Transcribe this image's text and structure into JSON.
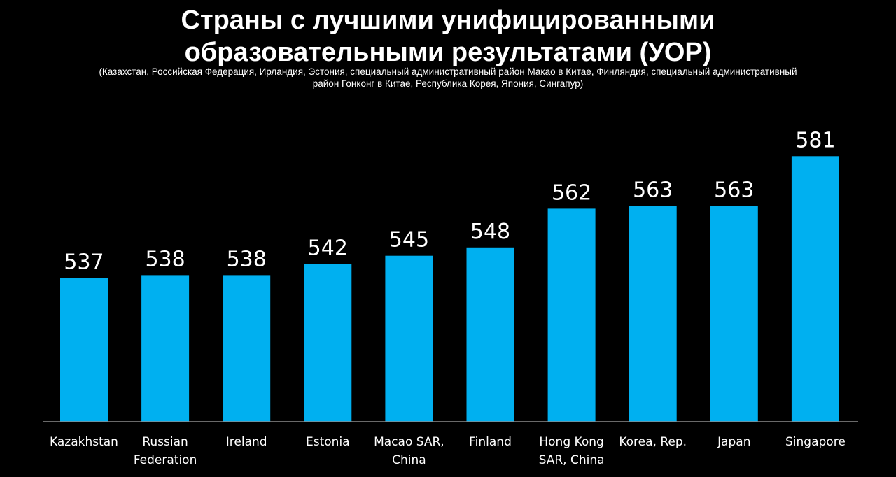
{
  "header": {
    "title_line1": "Страны с лучшими унифицированными",
    "title_line2": "образовательными результатами (УОР)",
    "subtitle_line1": "(Казахстан, Российская Федерация, Ирландия, Эстония, специальный административный район Макао в Китае, Финляндия, специальный административный",
    "subtitle_line2": "район Гонконг в Китае,  Республика Корея, Япония, Сингапур)"
  },
  "colors": {
    "background": "#000000",
    "bar": "#00b0f0",
    "text": "#ffffff",
    "axis": "#8c8c8c"
  },
  "chart_data": {
    "type": "bar",
    "title": "Страны с лучшими унифицированными образовательными результатами (УОР)",
    "categories": [
      [
        "Kazakhstan"
      ],
      [
        "Russian",
        "Federation"
      ],
      [
        "Ireland"
      ],
      [
        "Estonia"
      ],
      [
        "Macao SAR,",
        "China"
      ],
      [
        "Finland"
      ],
      [
        "Hong Kong",
        "SAR, China"
      ],
      [
        "Korea, Rep."
      ],
      [
        "Japan"
      ],
      [
        "Singapore"
      ]
    ],
    "values": [
      537,
      538,
      538,
      542,
      545,
      548,
      562,
      563,
      563,
      581
    ],
    "data_labels": true,
    "grid": false,
    "legend": "none",
    "xlabel": "",
    "ylabel": ""
  }
}
